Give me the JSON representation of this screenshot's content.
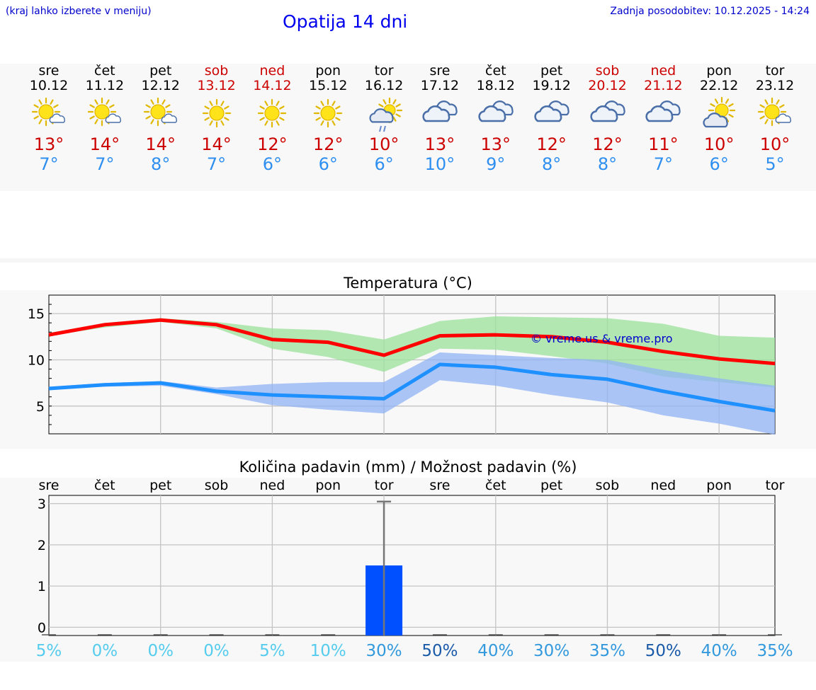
{
  "header": {
    "location_hint": "(kraj lahko izberete v meniju)",
    "title": "Opatija 14 dni",
    "last_update": "Zadnja posodobitev: 10.12.2025 - 14:24"
  },
  "forecast": {
    "days": [
      {
        "name": "sre",
        "date": "10.12",
        "weekend": false,
        "icon": "sun-cloud-icon",
        "tmax": "13°",
        "tmin": "7°"
      },
      {
        "name": "čet",
        "date": "11.12",
        "weekend": false,
        "icon": "sun-cloud-icon",
        "tmax": "14°",
        "tmin": "7°"
      },
      {
        "name": "pet",
        "date": "12.12",
        "weekend": false,
        "icon": "sun-cloud-icon",
        "tmax": "14°",
        "tmin": "8°"
      },
      {
        "name": "sob",
        "date": "13.12",
        "weekend": true,
        "icon": "sun-icon",
        "tmax": "14°",
        "tmin": "7°"
      },
      {
        "name": "ned",
        "date": "14.12",
        "weekend": true,
        "icon": "sun-icon",
        "tmax": "12°",
        "tmin": "6°"
      },
      {
        "name": "pon",
        "date": "15.12",
        "weekend": false,
        "icon": "sun-icon",
        "tmax": "12°",
        "tmin": "6°"
      },
      {
        "name": "tor",
        "date": "16.12",
        "weekend": false,
        "icon": "sun-cloud-rain-icon",
        "tmax": "10°",
        "tmin": "6°"
      },
      {
        "name": "sre",
        "date": "17.12",
        "weekend": false,
        "icon": "cloud-icon",
        "tmax": "13°",
        "tmin": "10°"
      },
      {
        "name": "čet",
        "date": "18.12",
        "weekend": false,
        "icon": "cloud-icon",
        "tmax": "13°",
        "tmin": "9°"
      },
      {
        "name": "pet",
        "date": "19.12",
        "weekend": false,
        "icon": "cloud-icon",
        "tmax": "12°",
        "tmin": "8°"
      },
      {
        "name": "sob",
        "date": "20.12",
        "weekend": true,
        "icon": "cloud-icon",
        "tmax": "12°",
        "tmin": "8°"
      },
      {
        "name": "ned",
        "date": "21.12",
        "weekend": true,
        "icon": "cloud-icon",
        "tmax": "11°",
        "tmin": "7°"
      },
      {
        "name": "pon",
        "date": "22.12",
        "weekend": false,
        "icon": "sun-big-cloud-icon",
        "tmax": "10°",
        "tmin": "6°"
      },
      {
        "name": "tor",
        "date": "23.12",
        "weekend": false,
        "icon": "sun-cloud-icon",
        "tmax": "10°",
        "tmin": "5°"
      }
    ]
  },
  "chart_data": [
    {
      "type": "line",
      "title": "Temperatura (°C)",
      "xlabel": "",
      "ylabel": "",
      "ylim": [
        2,
        17
      ],
      "yticks": [
        5,
        10,
        15
      ],
      "grid": true,
      "x": [
        0,
        1,
        2,
        3,
        4,
        5,
        6,
        7,
        8,
        9,
        10,
        11,
        12,
        13
      ],
      "series": [
        {
          "name": "max",
          "color": "#ff0000",
          "values": [
            12.7,
            13.8,
            14.3,
            13.8,
            12.2,
            11.9,
            10.5,
            12.6,
            12.7,
            12.5,
            11.9,
            10.9,
            10.1,
            9.6
          ]
        },
        {
          "name": "min",
          "color": "#1e90ff",
          "values": [
            6.9,
            7.3,
            7.5,
            6.6,
            6.2,
            6.0,
            5.8,
            9.5,
            9.2,
            8.4,
            7.9,
            6.6,
            5.5,
            4.5
          ]
        }
      ],
      "bands": [
        {
          "name": "max-range",
          "color": "#9be29b",
          "lower": [
            12.6,
            13.5,
            14.1,
            13.4,
            11.2,
            10.3,
            8.7,
            11.2,
            11.1,
            10.4,
            9.6,
            8.2,
            7.6,
            7.0
          ],
          "upper": [
            12.9,
            14.0,
            14.5,
            14.1,
            13.4,
            13.2,
            12.2,
            14.2,
            14.7,
            14.6,
            14.5,
            13.9,
            12.6,
            12.4
          ]
        },
        {
          "name": "min-range",
          "color": "#90b3f5",
          "lower": [
            6.8,
            7.1,
            7.2,
            6.3,
            5.1,
            4.6,
            4.2,
            7.8,
            7.2,
            6.2,
            5.4,
            4.0,
            3.1,
            1.9
          ],
          "upper": [
            7.1,
            7.5,
            7.7,
            7.0,
            7.4,
            7.6,
            7.6,
            10.8,
            10.5,
            10.2,
            10.0,
            8.9,
            8.0,
            7.2
          ]
        }
      ],
      "annotation": "© vreme.us & vreme.pro"
    },
    {
      "type": "bar",
      "title": "Količina padavin (mm) / Možnost padavin (%)",
      "categories": [
        "sre",
        "čet",
        "pet",
        "sob",
        "ned",
        "pon",
        "tor",
        "sre",
        "čet",
        "pet",
        "sob",
        "ned",
        "pon",
        "tor"
      ],
      "values": [
        0,
        0,
        0,
        0,
        0,
        0,
        1.5,
        0,
        0,
        0,
        0,
        0,
        0,
        0
      ],
      "error_max": [
        null,
        null,
        null,
        null,
        null,
        null,
        3.05,
        null,
        null,
        null,
        null,
        null,
        null,
        null
      ],
      "ylim": [
        -0.2,
        3.2
      ],
      "yticks": [
        0,
        1,
        2,
        3
      ],
      "bar_color": "#0050ff",
      "chance": [
        "5%",
        "0%",
        "0%",
        "0%",
        "5%",
        "10%",
        "30%",
        "50%",
        "40%",
        "30%",
        "35%",
        "50%",
        "40%",
        "35%"
      ],
      "chance_colors": [
        "#55ccee",
        "#55ccee",
        "#55ccee",
        "#55ccee",
        "#55ccee",
        "#55ccee",
        "#3399dd",
        "#1a5aa8",
        "#3399dd",
        "#3399dd",
        "#3399dd",
        "#1a5aa8",
        "#3399dd",
        "#3399dd"
      ]
    }
  ]
}
